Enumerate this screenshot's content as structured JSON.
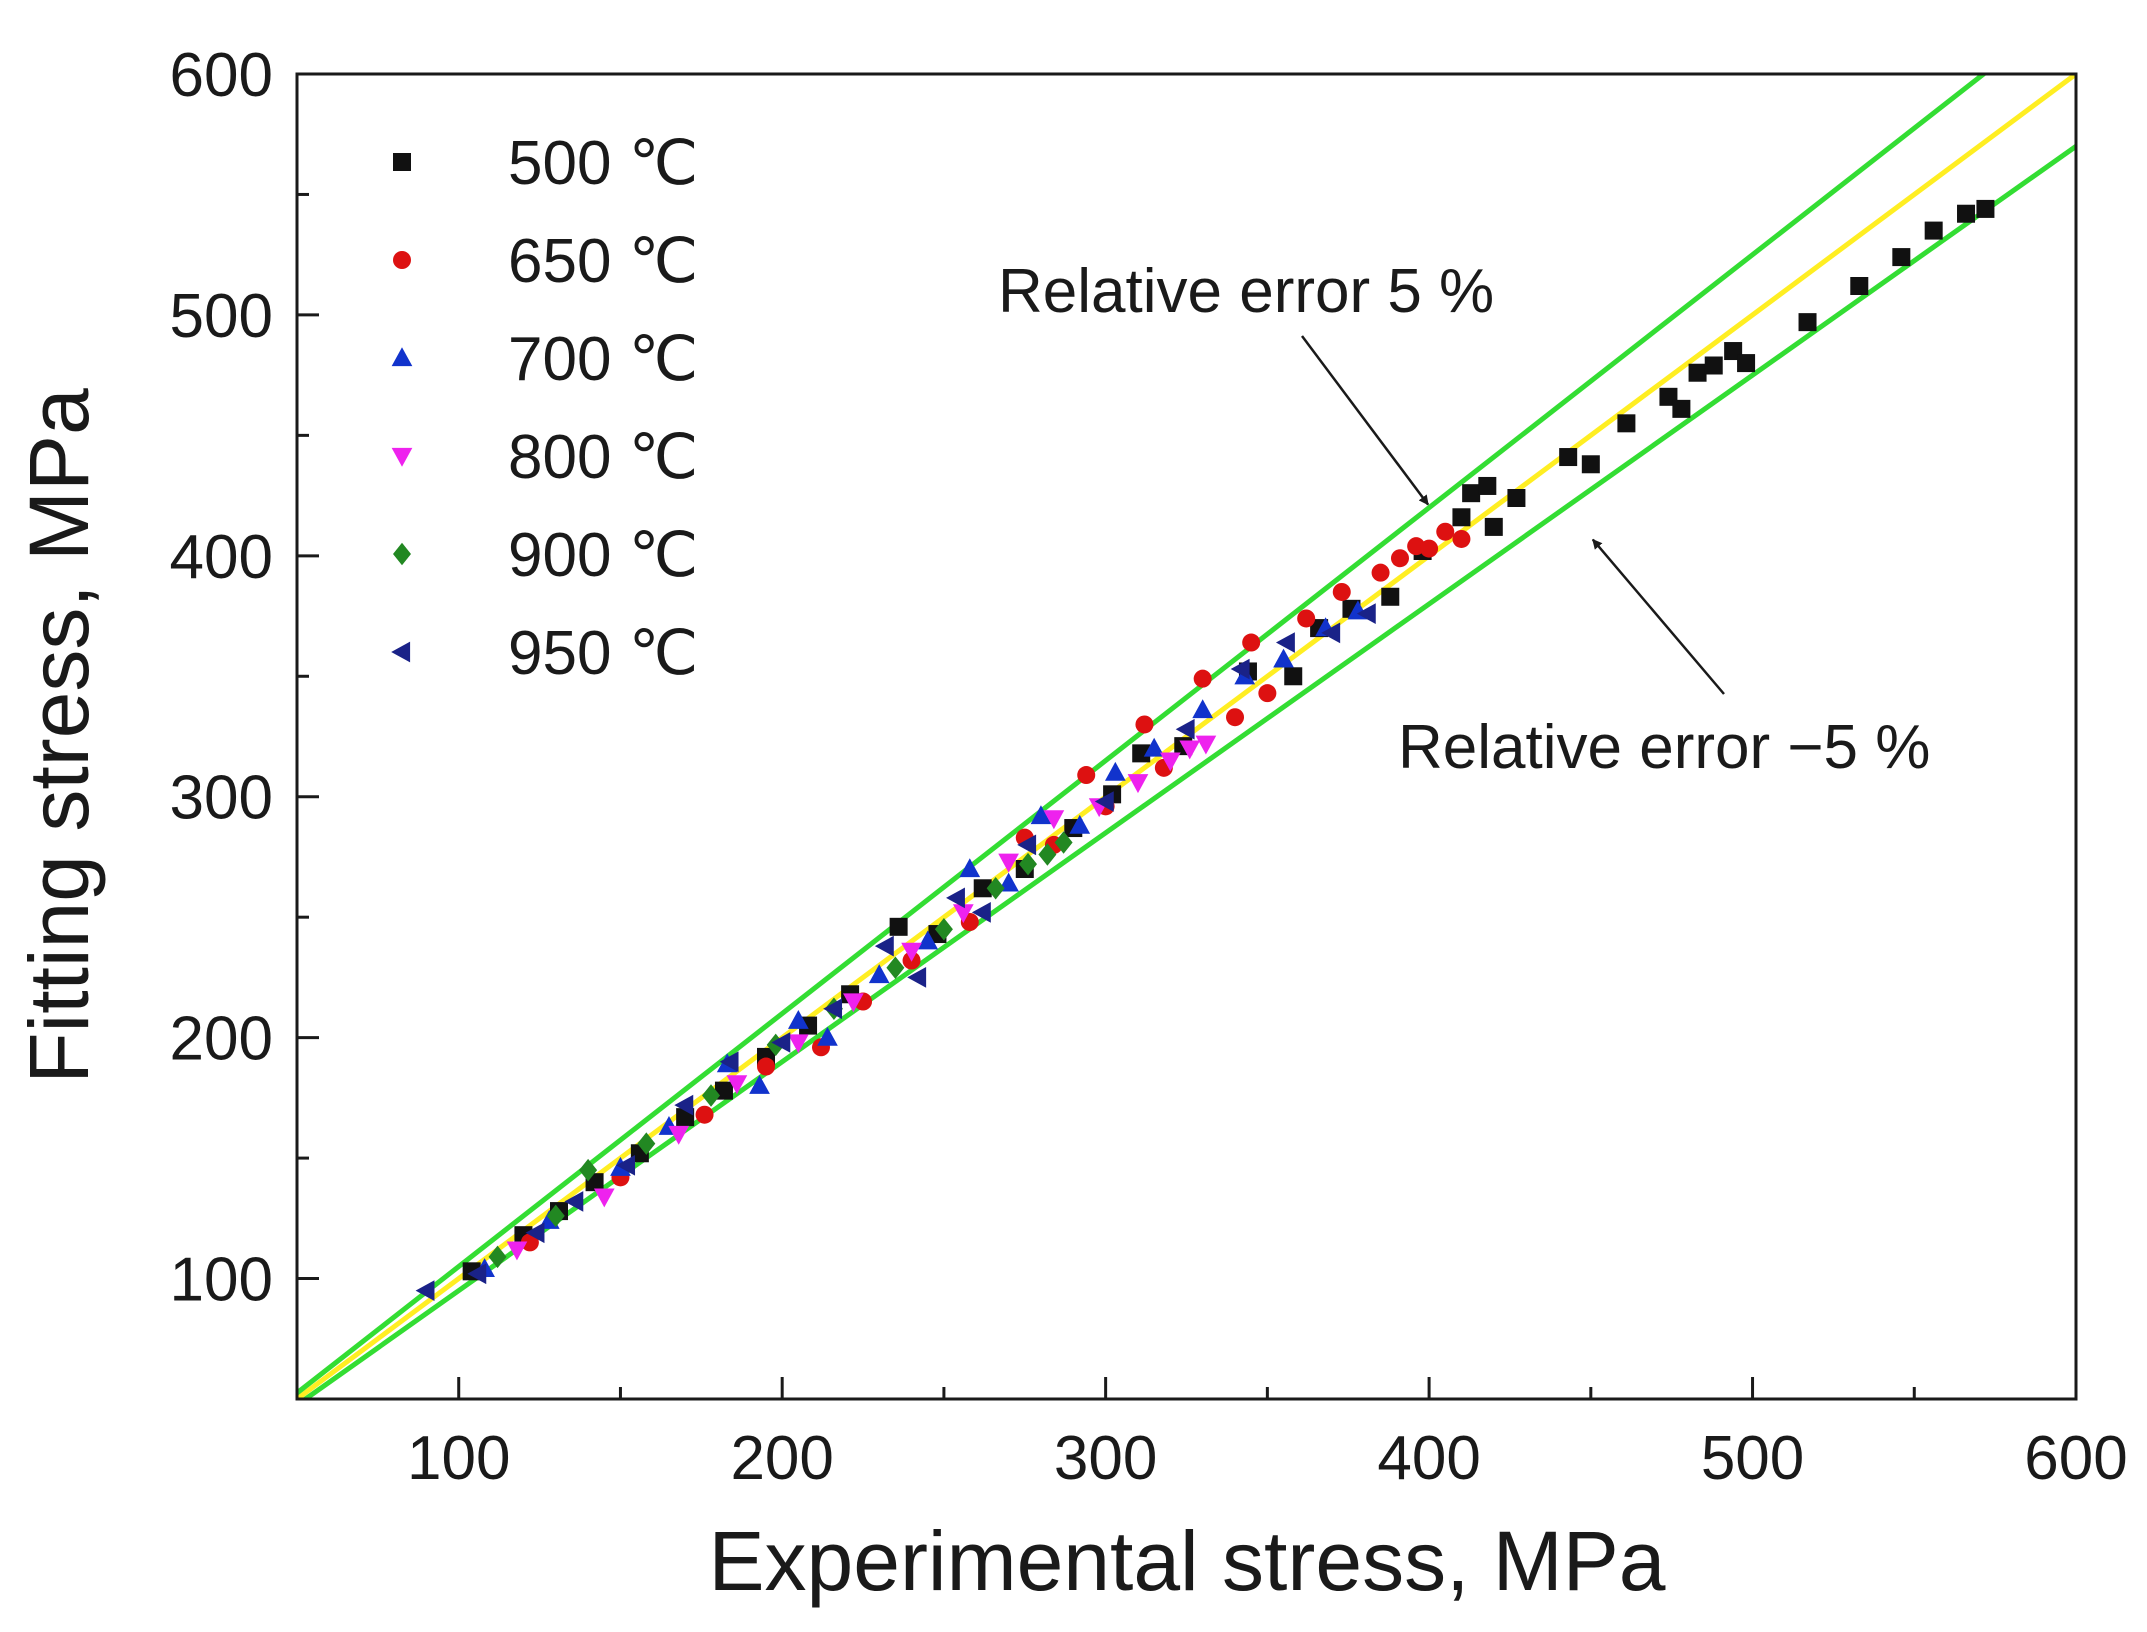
{
  "chart_data": {
    "type": "scatter",
    "title": "",
    "xlabel": "Experimental stress, MPa",
    "ylabel": "Fitting stress, MPa",
    "xlim": [
      50,
      600
    ],
    "ylim": [
      50,
      600
    ],
    "xticks": [
      100,
      200,
      300,
      400,
      500,
      600
    ],
    "yticks": [
      100,
      200,
      300,
      400,
      500,
      600
    ],
    "legend_position": "top-left",
    "colors": {
      "axis": "#1a1a1a",
      "ref_line": "#ffee22",
      "error_lines": "#33dd33"
    },
    "reference_lines": [
      {
        "name": "ideal",
        "slope": 1.0,
        "color": "#ffee22"
      },
      {
        "name": "+5%",
        "slope": 1.05,
        "color": "#33dd33"
      },
      {
        "name": "-5%",
        "slope": 0.95,
        "color": "#33dd33"
      }
    ],
    "annotations": [
      {
        "text": "Relative error 5 %",
        "arrow_to": [
          400,
          425
        ]
      },
      {
        "text": "Relative error −5 %",
        "arrow_to": [
          450,
          425
        ]
      }
    ],
    "series": [
      {
        "name": "500 ℃",
        "marker": "square",
        "color": "#111111",
        "points": [
          [
            104,
            103
          ],
          [
            120,
            118
          ],
          [
            131,
            128
          ],
          [
            142,
            140
          ],
          [
            156,
            152
          ],
          [
            170,
            167
          ],
          [
            182,
            178
          ],
          [
            195,
            192
          ],
          [
            208,
            205
          ],
          [
            221,
            218
          ],
          [
            236,
            246
          ],
          [
            248,
            243
          ],
          [
            262,
            262
          ],
          [
            275,
            270
          ],
          [
            290,
            287
          ],
          [
            302,
            301
          ],
          [
            311,
            318
          ],
          [
            324,
            321
          ],
          [
            344,
            352
          ],
          [
            358,
            350
          ],
          [
            366,
            370
          ],
          [
            376,
            378
          ],
          [
            388,
            383
          ],
          [
            398,
            402
          ],
          [
            410,
            416
          ],
          [
            413,
            426
          ],
          [
            418,
            429
          ],
          [
            420,
            412
          ],
          [
            427,
            424
          ],
          [
            443,
            441
          ],
          [
            450,
            438
          ],
          [
            461,
            455
          ],
          [
            474,
            466
          ],
          [
            478,
            461
          ],
          [
            483,
            476
          ],
          [
            488,
            479
          ],
          [
            494,
            485
          ],
          [
            498,
            480
          ],
          [
            517,
            497
          ],
          [
            533,
            512
          ],
          [
            546,
            524
          ],
          [
            556,
            535
          ],
          [
            566,
            542
          ],
          [
            572,
            544
          ]
        ]
      },
      {
        "name": "650 ℃",
        "marker": "circle",
        "color": "#dd1111",
        "points": [
          [
            122,
            115
          ],
          [
            150,
            142
          ],
          [
            176,
            168
          ],
          [
            195,
            188
          ],
          [
            212,
            196
          ],
          [
            225,
            215
          ],
          [
            240,
            232
          ],
          [
            258,
            248
          ],
          [
            275,
            283
          ],
          [
            284,
            280
          ],
          [
            294,
            309
          ],
          [
            300,
            296
          ],
          [
            312,
            330
          ],
          [
            318,
            312
          ],
          [
            330,
            349
          ],
          [
            340,
            333
          ],
          [
            345,
            364
          ],
          [
            350,
            343
          ],
          [
            362,
            374
          ],
          [
            373,
            385
          ],
          [
            385,
            393
          ],
          [
            391,
            399
          ],
          [
            396,
            404
          ],
          [
            400,
            403
          ],
          [
            405,
            410
          ],
          [
            410,
            407
          ]
        ]
      },
      {
        "name": "700 ℃",
        "marker": "triangle-up",
        "color": "#1133cc",
        "points": [
          [
            108,
            104
          ],
          [
            128,
            124
          ],
          [
            150,
            146
          ],
          [
            165,
            163
          ],
          [
            183,
            189
          ],
          [
            193,
            180
          ],
          [
            205,
            207
          ],
          [
            214,
            200
          ],
          [
            230,
            226
          ],
          [
            245,
            240
          ],
          [
            258,
            270
          ],
          [
            270,
            264
          ],
          [
            280,
            292
          ],
          [
            292,
            288
          ],
          [
            303,
            310
          ],
          [
            315,
            320
          ],
          [
            330,
            336
          ],
          [
            343,
            350
          ],
          [
            355,
            357
          ],
          [
            368,
            370
          ],
          [
            378,
            377
          ]
        ]
      },
      {
        "name": "800 ℃",
        "marker": "triangle-down",
        "color": "#ee22ee",
        "points": [
          [
            118,
            112
          ],
          [
            145,
            134
          ],
          [
            168,
            160
          ],
          [
            186,
            181
          ],
          [
            205,
            198
          ],
          [
            222,
            215
          ],
          [
            240,
            236
          ],
          [
            256,
            252
          ],
          [
            270,
            273
          ],
          [
            284,
            291
          ],
          [
            298,
            296
          ],
          [
            310,
            306
          ],
          [
            320,
            315
          ],
          [
            326,
            320
          ],
          [
            331,
            322
          ]
        ]
      },
      {
        "name": "900 ℃",
        "marker": "diamond",
        "color": "#228822",
        "points": [
          [
            112,
            109
          ],
          [
            130,
            126
          ],
          [
            140,
            145
          ],
          [
            158,
            156
          ],
          [
            178,
            176
          ],
          [
            198,
            197
          ],
          [
            216,
            212
          ],
          [
            235,
            229
          ],
          [
            250,
            245
          ],
          [
            266,
            262
          ],
          [
            276,
            272
          ],
          [
            282,
            276
          ],
          [
            287,
            281
          ]
        ]
      },
      {
        "name": "950 ℃",
        "marker": "triangle-left",
        "color": "#1a2288",
        "points": [
          [
            90,
            95
          ],
          [
            106,
            102
          ],
          [
            124,
            119
          ],
          [
            136,
            132
          ],
          [
            152,
            147
          ],
          [
            170,
            172
          ],
          [
            184,
            190
          ],
          [
            200,
            198
          ],
          [
            216,
            212
          ],
          [
            232,
            238
          ],
          [
            242,
            225
          ],
          [
            254,
            258
          ],
          [
            262,
            252
          ],
          [
            276,
            280
          ],
          [
            300,
            298
          ],
          [
            325,
            328
          ],
          [
            342,
            353
          ],
          [
            356,
            364
          ],
          [
            370,
            368
          ],
          [
            381,
            376
          ]
        ]
      }
    ]
  }
}
